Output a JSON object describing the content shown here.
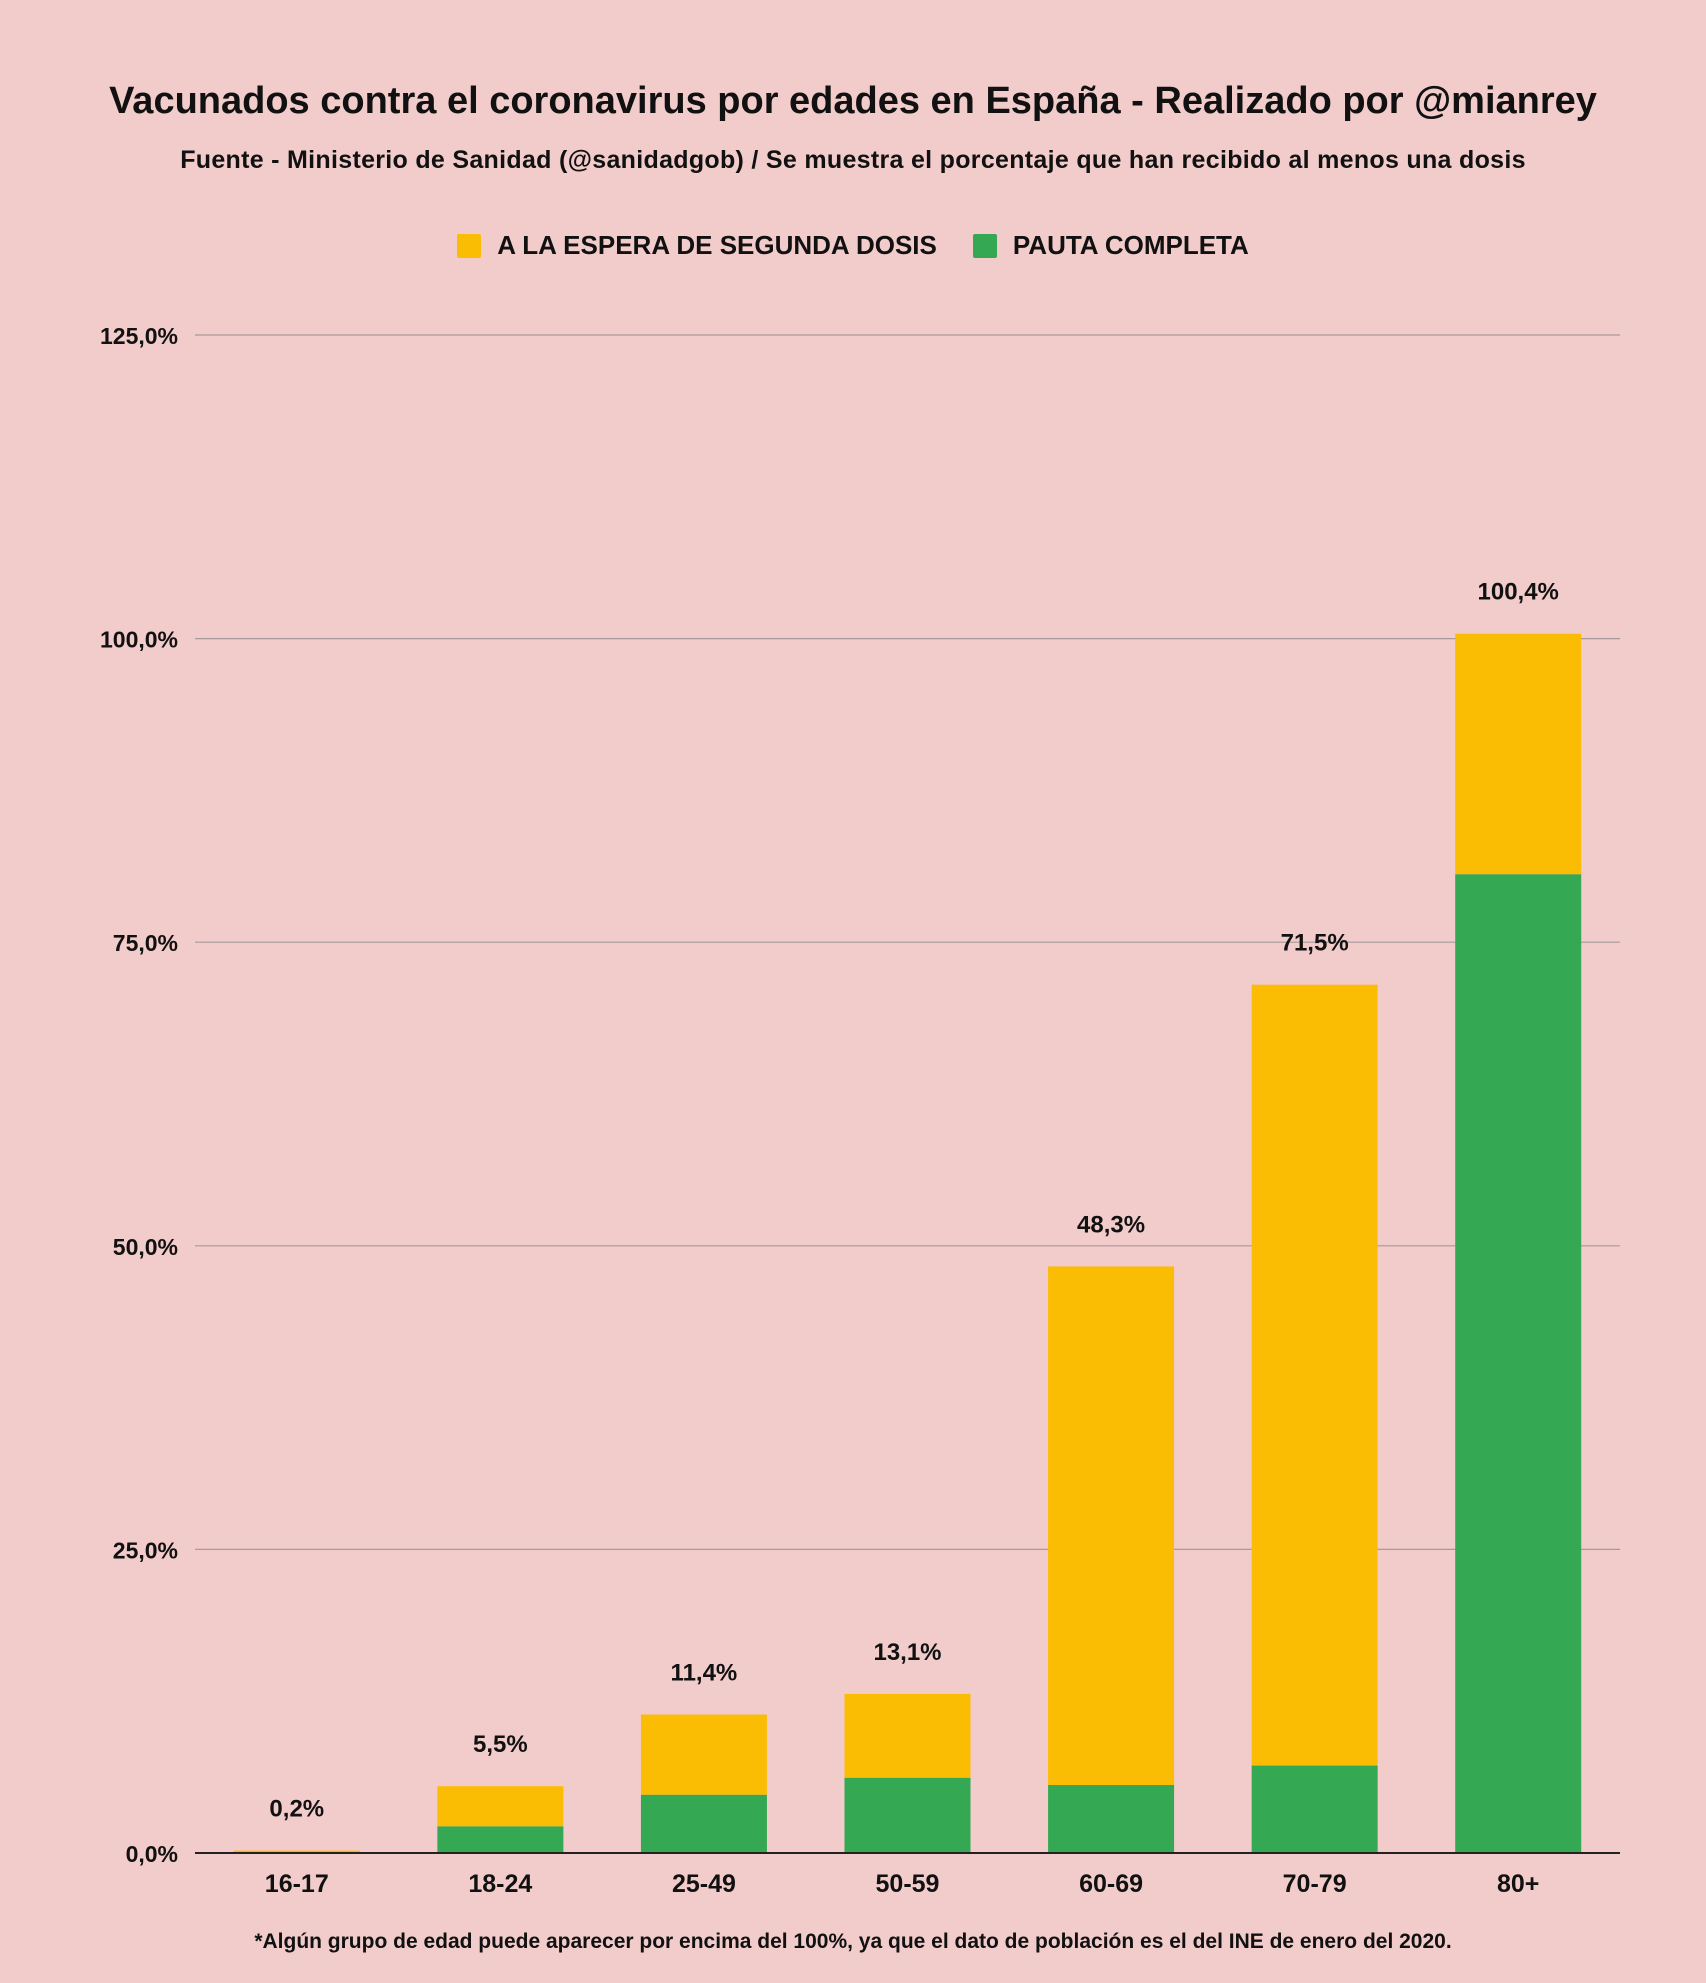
{
  "chart_data": {
    "type": "bar",
    "stacked": true,
    "title": "Vacunados contra el coronavirus por edades en España - Realizado por @mianrey",
    "subtitle": "Fuente - Ministerio de Sanidad (@sanidadgob) / Se muestra el porcentaje que han recibido al menos una dosis",
    "categories": [
      "16-17",
      "18-24",
      "25-49",
      "50-59",
      "60-69",
      "70-79",
      "80+"
    ],
    "series": [
      {
        "name": "PAUTA COMPLETA",
        "color": "#34a853",
        "values": [
          0.1,
          2.2,
          4.8,
          6.2,
          5.6,
          7.2,
          80.6
        ]
      },
      {
        "name": "A LA ESPERA DE SEGUNDA DOSIS",
        "color": "#fbbc04",
        "values": [
          0.1,
          3.3,
          6.6,
          6.9,
          42.7,
          64.3,
          19.8
        ]
      }
    ],
    "totals": [
      "0,2%",
      "5,5%",
      "11,4%",
      "13,1%",
      "48,3%",
      "71,5%",
      "100,4%"
    ],
    "total_values": [
      0.2,
      5.5,
      11.4,
      13.1,
      48.3,
      71.5,
      100.4
    ],
    "ylim": [
      0,
      125
    ],
    "yticks": [
      0,
      25,
      50,
      75,
      100,
      125
    ],
    "ytick_labels": [
      "0,0%",
      "25,0%",
      "50,0%",
      "75,0%",
      "100,0%",
      "125,0%"
    ],
    "grid": true,
    "legend_position": "top-center",
    "legend_order": [
      "A LA ESPERA DE SEGUNDA DOSIS",
      "PAUTA COMPLETA"
    ]
  },
  "footnote": "*Algún grupo de edad puede aparecer por encima del 100%, ya que el dato de población es el del INE de enero del 2020."
}
